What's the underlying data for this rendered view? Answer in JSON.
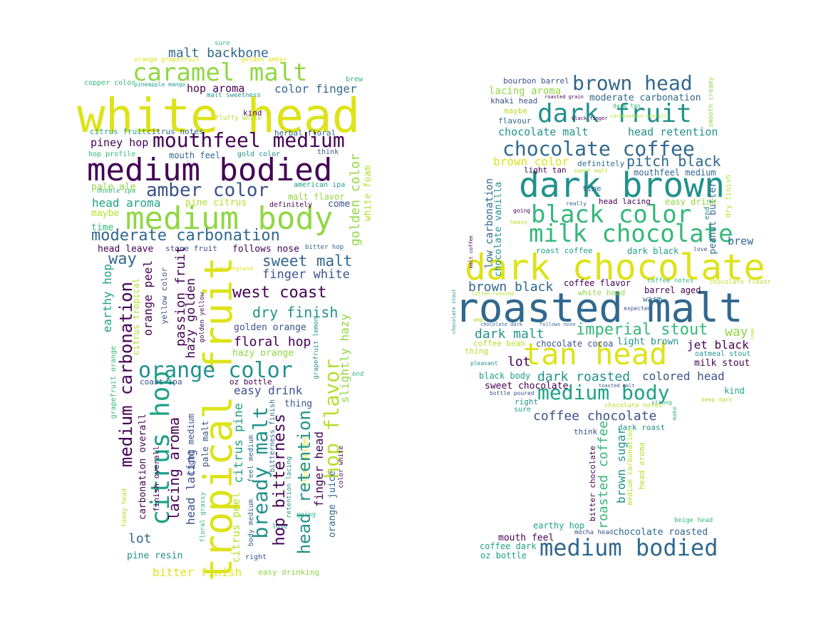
{
  "palette": {
    "dark_purple": "#440154",
    "indigo": "#3b528b",
    "teal_blue": "#31688e",
    "teal": "#21918c",
    "green_teal": "#1fa187",
    "green": "#35b779",
    "yellow_green": "#90d743",
    "lime": "#b5de2b",
    "yellow": "#dde318",
    "background": "#ffffff"
  },
  "left_cloud": {
    "words": [
      {
        "text": "white head",
        "color": "#dde318"
      },
      {
        "text": "medium bodied",
        "color": "#440154"
      },
      {
        "text": "medium body",
        "color": "#90d743"
      },
      {
        "text": "caramel malt",
        "color": "#90d743"
      },
      {
        "text": "mouthfeel medium",
        "color": "#440154"
      },
      {
        "text": "tropical fruit",
        "color": "#dde318"
      },
      {
        "text": "orange color",
        "color": "#21918c"
      },
      {
        "text": "moderate carbonation",
        "color": "#31688e"
      },
      {
        "text": "amber color",
        "color": "#3b528b"
      },
      {
        "text": "citrus hop",
        "color": "#1fa187"
      },
      {
        "text": "malt backbone",
        "color": "#31688e"
      },
      {
        "text": "hop aroma",
        "color": "#440154"
      },
      {
        "text": "color finger",
        "color": "#31688e"
      },
      {
        "text": "piney hop",
        "color": "#440154"
      },
      {
        "text": "head aroma",
        "color": "#1fa187"
      },
      {
        "text": "sweet malt",
        "color": "#31688e"
      },
      {
        "text": "finger white",
        "color": "#3b528b"
      },
      {
        "text": "west coast",
        "color": "#440154"
      },
      {
        "text": "dry finish",
        "color": "#21918c"
      },
      {
        "text": "floral hop",
        "color": "#440154"
      },
      {
        "text": "easy drink",
        "color": "#3b528b"
      },
      {
        "text": "golden orange",
        "color": "#3b528b"
      },
      {
        "text": "hazy orange",
        "color": "#90d743"
      },
      {
        "text": "way",
        "color": "#31688e"
      },
      {
        "text": "lot",
        "color": "#31688e"
      },
      {
        "text": "time",
        "color": "#35b779"
      },
      {
        "text": "maybe",
        "color": "#b5de2b"
      },
      {
        "text": "pale ale",
        "color": "#90d743"
      },
      {
        "text": "come",
        "color": "#3b528b"
      },
      {
        "text": "thing",
        "color": "#3b528b"
      },
      {
        "text": "pine resin",
        "color": "#21918c"
      },
      {
        "text": "bitter finish",
        "color": "#dde318"
      },
      {
        "text": "easy drinking",
        "color": "#90d743"
      },
      {
        "text": "head leave",
        "color": "#440154"
      },
      {
        "text": "stone fruit",
        "color": "#3b528b"
      },
      {
        "text": "follows nose",
        "color": "#440154"
      },
      {
        "text": "bitter hop",
        "color": "#31688e"
      },
      {
        "text": "mouth feel",
        "color": "#31688e"
      },
      {
        "text": "gold color",
        "color": "#21918c"
      },
      {
        "text": "think",
        "color": "#3b528b"
      },
      {
        "text": "hop profile",
        "color": "#35b779"
      },
      {
        "text": "citrus fruit",
        "color": "#1fa187"
      },
      {
        "text": "citrus notes",
        "color": "#31688e"
      },
      {
        "text": "herbal floral",
        "color": "#31688e"
      },
      {
        "text": "double ipa",
        "color": "#35b779"
      },
      {
        "text": "american ipa",
        "color": "#1fa187"
      },
      {
        "text": "malt flavor",
        "color": "#90d743"
      },
      {
        "text": "pine citrus",
        "color": "#b5de2b"
      },
      {
        "text": "definitely",
        "color": "#440154"
      },
      {
        "text": "kind",
        "color": "#440154"
      },
      {
        "text": "fluffy white",
        "color": "#b5de2b"
      },
      {
        "text": "malt sweetness",
        "color": "#21918c"
      },
      {
        "text": "brew",
        "color": "#35b779"
      },
      {
        "text": "copper color",
        "color": "#35b779"
      },
      {
        "text": "pineapple mango",
        "color": "#1fa187"
      },
      {
        "text": "orange grapefruit",
        "color": "#dde318"
      },
      {
        "text": "golden amber",
        "color": "#dde318"
      },
      {
        "text": "sure",
        "color": "#35b779"
      },
      {
        "text": "new england",
        "color": "#dde318"
      },
      {
        "text": "coast ipa",
        "color": "#3b528b"
      },
      {
        "text": "oz bottle",
        "color": "#440154"
      },
      {
        "text": "right",
        "color": "#3b528b"
      },
      {
        "text": "love",
        "color": "#21918c"
      },
      {
        "text": "going",
        "color": "#35b779"
      },
      {
        "text": "end",
        "color": "#35b779"
      },
      {
        "text": "golden color",
        "color": "#90d743"
      },
      {
        "text": "white foam",
        "color": "#b5de2b"
      },
      {
        "text": "hop flavor",
        "color": "#b5de2b"
      },
      {
        "text": "slightly hazy",
        "color": "#90d743"
      },
      {
        "text": "finger head",
        "color": "#440154"
      },
      {
        "text": "orange juice",
        "color": "#31688e"
      },
      {
        "text": "color white",
        "color": "#440154"
      },
      {
        "text": "grapefruit lemon",
        "color": "#21918c"
      },
      {
        "text": "clear golden",
        "color": "#dde318"
      },
      {
        "text": "head retention",
        "color": "#21918c"
      },
      {
        "text": "hop bitterness",
        "color": "#440154"
      },
      {
        "text": "bitterness finish",
        "color": "#31688e"
      },
      {
        "text": "retention lacing",
        "color": "#21918c"
      },
      {
        "text": "bready malt",
        "color": "#21918c"
      },
      {
        "text": "feel medium",
        "color": "#31688e"
      },
      {
        "text": "body medium",
        "color": "#31688e"
      },
      {
        "text": "citrus pine",
        "color": "#1fa187"
      },
      {
        "text": "citrus peel",
        "color": "#b5de2b"
      },
      {
        "text": "passion fruit",
        "color": "#440154"
      },
      {
        "text": "hazy golden",
        "color": "#440154"
      },
      {
        "text": "golden yellow",
        "color": "#440154"
      },
      {
        "text": "lacing aroma",
        "color": "#440154"
      },
      {
        "text": "head lacing",
        "color": "#3b528b"
      },
      {
        "text": "light medium",
        "color": "#3b528b"
      },
      {
        "text": "pale malt",
        "color": "#3b528b"
      },
      {
        "text": "floral grassy",
        "color": "#35b779"
      },
      {
        "text": "orange peel",
        "color": "#440154"
      },
      {
        "text": "yellow color",
        "color": "#3b528b"
      },
      {
        "text": "citrus tropical",
        "color": "#b5de2b"
      },
      {
        "text": "medium carbonation",
        "color": "#440154"
      },
      {
        "text": "earthy hop",
        "color": "#1fa187"
      },
      {
        "text": "carbonation overall",
        "color": "#440154"
      },
      {
        "text": "finish overall",
        "color": "#440154"
      },
      {
        "text": "grapefruit orange",
        "color": "#35b779"
      },
      {
        "text": "foamy head",
        "color": "#b5de2b"
      }
    ]
  },
  "right_cloud": {
    "words": [
      {
        "text": "roasted malt",
        "color": "#31688e"
      },
      {
        "text": "dark chocolate",
        "color": "#dde318"
      },
      {
        "text": "dark brown",
        "color": "#21918c"
      },
      {
        "text": "tan head",
        "color": "#dde318"
      },
      {
        "text": "milk chocolate",
        "color": "#35b779"
      },
      {
        "text": "black color",
        "color": "#35b779"
      },
      {
        "text": "chocolate coffee",
        "color": "#31688e"
      },
      {
        "text": "dark fruit",
        "color": "#21918c"
      },
      {
        "text": "brown head",
        "color": "#31688e"
      },
      {
        "text": "medium body",
        "color": "#1fa187"
      },
      {
        "text": "medium bodied",
        "color": "#31688e"
      },
      {
        "text": "imperial stout",
        "color": "#35b779"
      },
      {
        "text": "coffee chocolate",
        "color": "#3b528b"
      },
      {
        "text": "pitch black",
        "color": "#31688e"
      },
      {
        "text": "brown black",
        "color": "#31688e"
      },
      {
        "text": "dark malt",
        "color": "#21918c"
      },
      {
        "text": "dark roasted",
        "color": "#21918c"
      },
      {
        "text": "colored head",
        "color": "#3b528b"
      },
      {
        "text": "jet black",
        "color": "#440154"
      },
      {
        "text": "lot",
        "color": "#440154"
      },
      {
        "text": "way",
        "color": "#90d743"
      },
      {
        "text": "brew",
        "color": "#31688e"
      },
      {
        "text": "chocolate malt",
        "color": "#21918c"
      },
      {
        "text": "head retention",
        "color": "#21918c"
      },
      {
        "text": "lacing aroma",
        "color": "#90d743"
      },
      {
        "text": "moderate carbonation",
        "color": "#31688e"
      },
      {
        "text": "bourbon barrel",
        "color": "#3b528b"
      },
      {
        "text": "roasted grain",
        "color": "#440154"
      },
      {
        "text": "smooth creamy",
        "color": "#90d743"
      },
      {
        "text": "khaki head",
        "color": "#3b528b"
      },
      {
        "text": "dark tan",
        "color": "#35b779"
      },
      {
        "text": "maybe",
        "color": "#b5de2b"
      },
      {
        "text": "flavour",
        "color": "#31688e"
      },
      {
        "text": "black finger",
        "color": "#440154"
      },
      {
        "text": "carbonation overall",
        "color": "#b5de2b"
      },
      {
        "text": "brown color",
        "color": "#dde318"
      },
      {
        "text": "definitely",
        "color": "#31688e"
      },
      {
        "text": "light tan",
        "color": "#440154"
      },
      {
        "text": "sweet malt",
        "color": "#b5de2b"
      },
      {
        "text": "mouthfeel medium",
        "color": "#31688e"
      },
      {
        "text": "dry finish",
        "color": "#b5de2b"
      },
      {
        "text": "peanut butter",
        "color": "#31688e"
      },
      {
        "text": "end",
        "color": "#21918c"
      },
      {
        "text": "time",
        "color": "#31688e"
      },
      {
        "text": "head lacing",
        "color": "#440154"
      },
      {
        "text": "easy drink",
        "color": "#90d743"
      },
      {
        "text": "really",
        "color": "#31688e"
      },
      {
        "text": "going",
        "color": "#440154"
      },
      {
        "text": "heavy",
        "color": "#b5de2b"
      },
      {
        "text": "malt coffee",
        "color": "#440154"
      },
      {
        "text": "low carbonation",
        "color": "#31688e"
      },
      {
        "text": "chocolate vanilla",
        "color": "#21918c"
      },
      {
        "text": "roast coffee",
        "color": "#1fa187"
      },
      {
        "text": "dark black",
        "color": "#1fa187"
      },
      {
        "text": "love",
        "color": "#3b528b"
      },
      {
        "text": "coffee flavor",
        "color": "#440154"
      },
      {
        "text": "white head",
        "color": "#90d743"
      },
      {
        "text": "barrel aged",
        "color": "#440154"
      },
      {
        "text": "coffee notes",
        "color": "#35b779"
      },
      {
        "text": "chocolate flavor",
        "color": "#b5de2b"
      },
      {
        "text": "warm",
        "color": "#31688e"
      },
      {
        "text": "expected",
        "color": "#3b528b"
      },
      {
        "text": "coffee roasted",
        "color": "#b5de2b"
      },
      {
        "text": "chocolate stout",
        "color": "#21918c"
      },
      {
        "text": "amp",
        "color": "#b5de2b"
      },
      {
        "text": "chocolate dark",
        "color": "#31688e"
      },
      {
        "text": "follows nose",
        "color": "#31688e"
      },
      {
        "text": "come",
        "color": "#b5de2b"
      },
      {
        "text": "coffee bean",
        "color": "#b5de2b"
      },
      {
        "text": "chocolate cocoa",
        "color": "#3b528b"
      },
      {
        "text": "light brown",
        "color": "#21918c"
      },
      {
        "text": "oatmeal stout",
        "color": "#21918c"
      },
      {
        "text": "thing",
        "color": "#b5de2b"
      },
      {
        "text": "milk stout",
        "color": "#440154"
      },
      {
        "text": "pleasant",
        "color": "#21918c"
      },
      {
        "text": "black body",
        "color": "#1fa187"
      },
      {
        "text": "sweet chocolate",
        "color": "#440154"
      },
      {
        "text": "toasted malt",
        "color": "#3b528b"
      },
      {
        "text": "kind",
        "color": "#1fa187"
      },
      {
        "text": "bottle poured",
        "color": "#3b528b"
      },
      {
        "text": "deep dark",
        "color": "#b5de2b"
      },
      {
        "text": "right",
        "color": "#21918c"
      },
      {
        "text": "sure",
        "color": "#1fa187"
      },
      {
        "text": "chocolate notes",
        "color": "#b5de2b"
      },
      {
        "text": "make",
        "color": "#35b779"
      },
      {
        "text": "think",
        "color": "#3b528b"
      },
      {
        "text": "dark roast",
        "color": "#21918c"
      },
      {
        "text": "bitter chocolate",
        "color": "#440154"
      },
      {
        "text": "roasted coffee",
        "color": "#35b779"
      },
      {
        "text": "brown sugar",
        "color": "#21918c"
      },
      {
        "text": "medium carbonation",
        "color": "#b5de2b"
      },
      {
        "text": "head aroma",
        "color": "#b5de2b"
      },
      {
        "text": "beige head",
        "color": "#35b779"
      },
      {
        "text": "chocolate roasted",
        "color": "#31688e"
      },
      {
        "text": "earthy hop",
        "color": "#1fa187"
      },
      {
        "text": "mocha head",
        "color": "#3b528b"
      },
      {
        "text": "mouth feel",
        "color": "#440154"
      },
      {
        "text": "coffee dark",
        "color": "#1fa187"
      },
      {
        "text": "oz bottle",
        "color": "#1fa187"
      },
      {
        "text": "strong",
        "color": "#35b779"
      }
    ]
  }
}
